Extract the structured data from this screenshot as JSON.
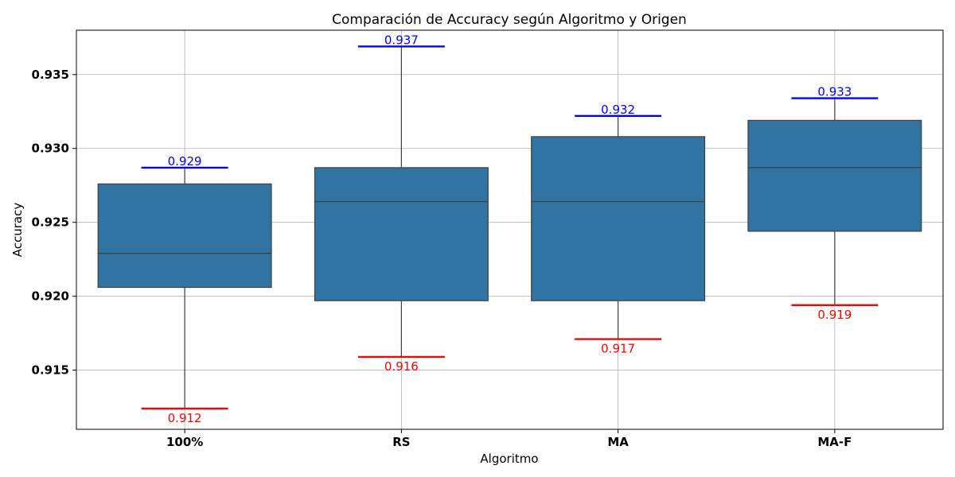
{
  "chart_data": {
    "type": "box",
    "title": "Comparación de Accuracy según Algoritmo y Origen",
    "xlabel": "Algoritmo",
    "ylabel": "Accuracy",
    "ylim": [
      0.911,
      0.938
    ],
    "yticks": [
      0.915,
      0.92,
      0.925,
      0.93,
      0.935
    ],
    "ytick_labels": [
      "0.915",
      "0.920",
      "0.925",
      "0.930",
      "0.935"
    ],
    "grid": true,
    "box_color": "#3274a1",
    "max_color": "#0000ff",
    "min_color": "#ff0000",
    "categories": [
      "100%",
      "RS",
      "MA",
      "MA-F"
    ],
    "boxes": [
      {
        "category": "100%",
        "min": 0.9124,
        "q1": 0.9206,
        "median": 0.9229,
        "q3": 0.9276,
        "max": 0.9287,
        "max_label": "0.929",
        "min_label": "0.912"
      },
      {
        "category": "RS",
        "min": 0.9159,
        "q1": 0.9197,
        "median": 0.9264,
        "q3": 0.9287,
        "max": 0.9369,
        "max_label": "0.937",
        "min_label": "0.916"
      },
      {
        "category": "MA",
        "min": 0.9171,
        "q1": 0.9197,
        "median": 0.9264,
        "q3": 0.9308,
        "max": 0.9322,
        "max_label": "0.932",
        "min_label": "0.917"
      },
      {
        "category": "MA-F",
        "min": 0.9194,
        "q1": 0.9244,
        "median": 0.9287,
        "q3": 0.9319,
        "max": 0.9334,
        "max_label": "0.933",
        "min_label": "0.919"
      }
    ]
  }
}
